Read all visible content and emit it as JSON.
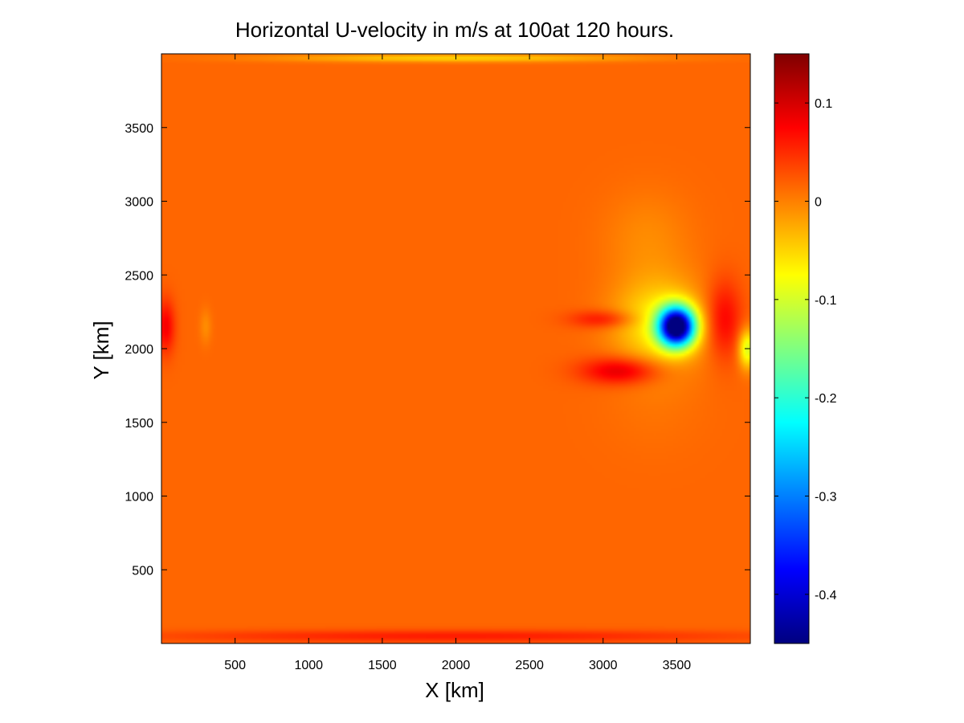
{
  "chart_data": {
    "type": "heatmap",
    "title": "Horizontal U-velocity in m/s at 100at 120 hours.",
    "xlabel": "X [km]",
    "ylabel": "Y [km]",
    "xlim": [
      0,
      4000
    ],
    "ylim": [
      0,
      4000
    ],
    "xticks": [
      500,
      1000,
      1500,
      2000,
      2500,
      3000,
      3500
    ],
    "yticks": [
      500,
      1000,
      1500,
      2000,
      2500,
      3000,
      3500
    ],
    "colormap": "jet",
    "clim": [
      -0.45,
      0.15
    ],
    "colorbar_ticks": [
      0.1,
      0,
      -0.1,
      -0.2,
      -0.3,
      -0.4
    ],
    "colorbar_tick_labels": [
      "0.1",
      "0",
      "-0.1",
      "-0.2",
      "-0.3",
      "-0.4"
    ],
    "background_value": 0.015,
    "features": [
      {
        "x": 3500,
        "y": 2150,
        "sx": 120,
        "sy": 130,
        "value": -0.47
      },
      {
        "x": 3380,
        "y": 2170,
        "sx": 300,
        "sy": 300,
        "value": -0.07
      },
      {
        "x": 3120,
        "y": 1850,
        "sx": 260,
        "sy": 90,
        "value": 0.1
      },
      {
        "x": 3000,
        "y": 2200,
        "sx": 220,
        "sy": 60,
        "value": 0.07
      },
      {
        "x": 3820,
        "y": 2200,
        "sx": 120,
        "sy": 260,
        "value": 0.08
      },
      {
        "x": 3980,
        "y": 2000,
        "sx": 60,
        "sy": 130,
        "value": -0.1
      },
      {
        "x": 3350,
        "y": 1600,
        "sx": 350,
        "sy": 320,
        "value": 0.008
      },
      {
        "x": 3300,
        "y": 2750,
        "sx": 300,
        "sy": 320,
        "value": -0.006
      },
      {
        "x": 30,
        "y": 2150,
        "sx": 60,
        "sy": 180,
        "value": 0.08
      },
      {
        "x": 300,
        "y": 2150,
        "sx": 40,
        "sy": 120,
        "value": -0.008
      },
      {
        "x": 2000,
        "y": 50,
        "sx": 2000,
        "sy": 40,
        "value": 0.06
      },
      {
        "x": 2000,
        "y": 3970,
        "sx": 1200,
        "sy": 25,
        "value": -0.05
      }
    ]
  }
}
